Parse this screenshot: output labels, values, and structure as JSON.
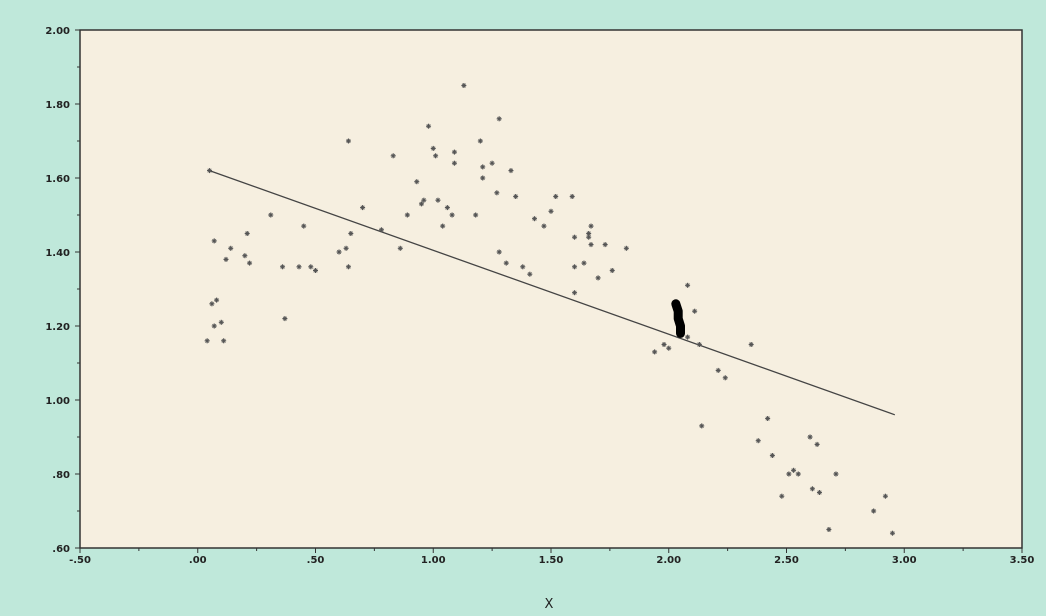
{
  "chart_data": {
    "type": "scatter",
    "title": "",
    "xlabel": "X",
    "ylabel": "",
    "xlim": [
      -0.5,
      3.5
    ],
    "ylim": [
      0.6,
      2.0
    ],
    "x_ticks": [
      -0.5,
      0.0,
      0.5,
      1.0,
      1.5,
      2.0,
      2.5,
      3.0,
      3.5
    ],
    "x_tick_labels": [
      "-.50",
      ".00",
      ".50",
      "1.00",
      "1.50",
      "2.00",
      "2.50",
      "3.00",
      "3.50"
    ],
    "y_ticks": [
      0.6,
      0.8,
      1.0,
      1.2,
      1.4,
      1.6,
      1.8,
      2.0
    ],
    "y_tick_labels": [
      ".60",
      ".80",
      "1.00",
      "1.20",
      "1.40",
      "1.60",
      "1.80",
      "2.00"
    ],
    "grid": false,
    "colors": {
      "background": "#bfe8da",
      "plot_area": "#f6efe0",
      "marker": "#555555",
      "line": "#444444",
      "annotation": "#000000"
    },
    "series": [
      {
        "values": [
          [
            0.05,
            1.62
          ],
          [
            0.07,
            1.43
          ],
          [
            0.04,
            1.16
          ],
          [
            0.06,
            1.26
          ],
          [
            0.07,
            1.2
          ],
          [
            0.08,
            1.27
          ],
          [
            0.1,
            1.21
          ],
          [
            0.11,
            1.16
          ],
          [
            0.12,
            1.38
          ],
          [
            0.14,
            1.41
          ],
          [
            0.2,
            1.39
          ],
          [
            0.21,
            1.45
          ],
          [
            0.22,
            1.37
          ],
          [
            0.31,
            1.5
          ],
          [
            0.36,
            1.36
          ],
          [
            0.37,
            1.22
          ],
          [
            0.43,
            1.36
          ],
          [
            0.45,
            1.47
          ],
          [
            0.48,
            1.36
          ],
          [
            0.5,
            1.35
          ],
          [
            0.6,
            1.4
          ],
          [
            0.63,
            1.41
          ],
          [
            0.64,
            1.36
          ],
          [
            0.64,
            1.7
          ],
          [
            0.65,
            1.45
          ],
          [
            0.7,
            1.52
          ],
          [
            0.78,
            1.46
          ],
          [
            0.83,
            1.66
          ],
          [
            0.86,
            1.41
          ],
          [
            0.89,
            1.5
          ],
          [
            0.93,
            1.59
          ],
          [
            0.95,
            1.53
          ],
          [
            0.96,
            1.54
          ],
          [
            0.98,
            1.74
          ],
          [
            1.0,
            1.68
          ],
          [
            1.01,
            1.66
          ],
          [
            1.02,
            1.54
          ],
          [
            1.04,
            1.47
          ],
          [
            1.06,
            1.52
          ],
          [
            1.08,
            1.5
          ],
          [
            1.09,
            1.67
          ],
          [
            1.09,
            1.64
          ],
          [
            1.13,
            1.85
          ],
          [
            1.18,
            1.5
          ],
          [
            1.2,
            1.7
          ],
          [
            1.21,
            1.63
          ],
          [
            1.21,
            1.6
          ],
          [
            1.25,
            1.64
          ],
          [
            1.27,
            1.56
          ],
          [
            1.28,
            1.76
          ],
          [
            1.28,
            1.4
          ],
          [
            1.31,
            1.37
          ],
          [
            1.33,
            1.62
          ],
          [
            1.35,
            1.55
          ],
          [
            1.38,
            1.36
          ],
          [
            1.41,
            1.34
          ],
          [
            1.43,
            1.49
          ],
          [
            1.47,
            1.47
          ],
          [
            1.5,
            1.51
          ],
          [
            1.52,
            1.55
          ],
          [
            1.59,
            1.55
          ],
          [
            1.6,
            1.44
          ],
          [
            1.6,
            1.36
          ],
          [
            1.6,
            1.29
          ],
          [
            1.64,
            1.37
          ],
          [
            1.66,
            1.45
          ],
          [
            1.66,
            1.44
          ],
          [
            1.67,
            1.42
          ],
          [
            1.67,
            1.47
          ],
          [
            1.7,
            1.33
          ],
          [
            1.73,
            1.42
          ],
          [
            1.76,
            1.35
          ],
          [
            1.82,
            1.41
          ],
          [
            1.94,
            1.13
          ],
          [
            1.98,
            1.15
          ],
          [
            2.0,
            1.14
          ],
          [
            2.08,
            1.31
          ],
          [
            2.08,
            1.17
          ],
          [
            2.11,
            1.24
          ],
          [
            2.13,
            1.15
          ],
          [
            2.14,
            0.93
          ],
          [
            2.21,
            1.08
          ],
          [
            2.24,
            1.06
          ],
          [
            2.35,
            1.15
          ],
          [
            2.38,
            0.89
          ],
          [
            2.42,
            0.95
          ],
          [
            2.44,
            0.85
          ],
          [
            2.48,
            0.74
          ],
          [
            2.51,
            0.8
          ],
          [
            2.53,
            0.81
          ],
          [
            2.55,
            0.8
          ],
          [
            2.6,
            0.9
          ],
          [
            2.61,
            0.76
          ],
          [
            2.63,
            0.88
          ],
          [
            2.64,
            0.75
          ],
          [
            2.68,
            0.65
          ],
          [
            2.71,
            0.8
          ],
          [
            2.87,
            0.7
          ],
          [
            2.92,
            0.74
          ],
          [
            2.95,
            0.64
          ]
        ]
      }
    ],
    "regression_line": [
      [
        0.05,
        1.62
      ],
      [
        2.96,
        0.96
      ]
    ],
    "annotations": [
      {
        "type": "freehand-mark",
        "points": [
          [
            2.03,
            1.26
          ],
          [
            2.04,
            1.24
          ],
          [
            2.04,
            1.22
          ],
          [
            2.05,
            1.2
          ],
          [
            2.05,
            1.18
          ]
        ]
      }
    ]
  }
}
